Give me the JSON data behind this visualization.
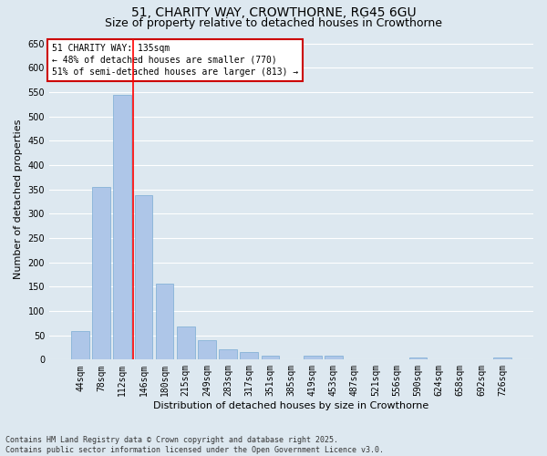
{
  "title1": "51, CHARITY WAY, CROWTHORNE, RG45 6GU",
  "title2": "Size of property relative to detached houses in Crowthorne",
  "xlabel": "Distribution of detached houses by size in Crowthorne",
  "ylabel": "Number of detached properties",
  "categories": [
    "44sqm",
    "78sqm",
    "112sqm",
    "146sqm",
    "180sqm",
    "215sqm",
    "249sqm",
    "283sqm",
    "317sqm",
    "351sqm",
    "385sqm",
    "419sqm",
    "453sqm",
    "487sqm",
    "521sqm",
    "556sqm",
    "590sqm",
    "624sqm",
    "658sqm",
    "692sqm",
    "726sqm"
  ],
  "values": [
    58,
    355,
    545,
    338,
    157,
    68,
    40,
    22,
    15,
    9,
    0,
    8,
    9,
    0,
    0,
    0,
    4,
    0,
    0,
    0,
    4
  ],
  "bar_color": "#aec6e8",
  "bar_edge_color": "#7aacd4",
  "bg_color": "#dde8f0",
  "grid_color": "#ffffff",
  "red_line_x": 2.5,
  "annotation_title": "51 CHARITY WAY: 135sqm",
  "annotation_line1": "← 48% of detached houses are smaller (770)",
  "annotation_line2": "51% of semi-detached houses are larger (813) →",
  "annotation_box_color": "#ffffff",
  "annotation_border_color": "#cc0000",
  "ylim": [
    0,
    660
  ],
  "yticks": [
    0,
    50,
    100,
    150,
    200,
    250,
    300,
    350,
    400,
    450,
    500,
    550,
    600,
    650
  ],
  "footer1": "Contains HM Land Registry data © Crown copyright and database right 2025.",
  "footer2": "Contains public sector information licensed under the Open Government Licence v3.0.",
  "title_fontsize": 10,
  "subtitle_fontsize": 9,
  "tick_fontsize": 7,
  "label_fontsize": 8,
  "annotation_fontsize": 7,
  "footer_fontsize": 6
}
